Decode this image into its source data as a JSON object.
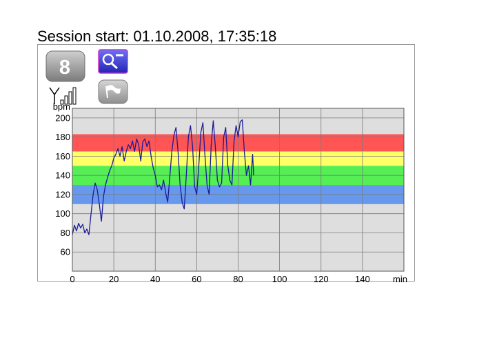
{
  "header": {
    "session_label": "Session start: 01.10.2008, 17:35:18"
  },
  "toolbar": {
    "buttons": [
      {
        "name": "badge-8-button",
        "icon": "number-badge-icon",
        "text": "8"
      },
      {
        "name": "zoom-out-button",
        "icon": "zoom-out-magnifier-icon"
      },
      {
        "name": "signal-strength",
        "icon": "signal-strength-icon"
      },
      {
        "name": "flag-button",
        "icon": "flag-icon"
      }
    ]
  },
  "chart_data": {
    "type": "line",
    "ylabel": "bpm",
    "xlabel": "min",
    "xlim": [
      0,
      160
    ],
    "ylim": [
      40,
      210
    ],
    "x_ticks": [
      0,
      20,
      40,
      60,
      80,
      100,
      120,
      140
    ],
    "x_tick_labels": [
      "0",
      "20",
      "40",
      "60",
      "80",
      "100",
      "120",
      "140"
    ],
    "y_ticks": [
      60,
      80,
      100,
      120,
      140,
      160,
      180,
      200
    ],
    "y_tick_labels": [
      "60",
      "80",
      "100",
      "120",
      "140",
      "160",
      "180",
      "200"
    ],
    "grid": true,
    "zones": [
      {
        "from": 110,
        "to": 130,
        "color": "#6699ee"
      },
      {
        "from": 130,
        "to": 150,
        "color": "#55ee55"
      },
      {
        "from": 150,
        "to": 165,
        "color": "#ffff66"
      },
      {
        "from": 165,
        "to": 183,
        "color": "#ff5555"
      }
    ],
    "series": [
      {
        "color": "#1a1a99",
        "points": [
          [
            0,
            78
          ],
          [
            1,
            88
          ],
          [
            2,
            82
          ],
          [
            3,
            90
          ],
          [
            4,
            85
          ],
          [
            5,
            89
          ],
          [
            6,
            80
          ],
          [
            7,
            84
          ],
          [
            8,
            78
          ],
          [
            9,
            100
          ],
          [
            10,
            120
          ],
          [
            11,
            132
          ],
          [
            12,
            125
          ],
          [
            13,
            110
          ],
          [
            14,
            92
          ],
          [
            15,
            118
          ],
          [
            16,
            130
          ],
          [
            17,
            138
          ],
          [
            18,
            145
          ],
          [
            19,
            150
          ],
          [
            20,
            158
          ],
          [
            21,
            162
          ],
          [
            22,
            168
          ],
          [
            23,
            160
          ],
          [
            24,
            170
          ],
          [
            25,
            155
          ],
          [
            26,
            165
          ],
          [
            27,
            172
          ],
          [
            28,
            168
          ],
          [
            29,
            176
          ],
          [
            30,
            165
          ],
          [
            31,
            178
          ],
          [
            32,
            172
          ],
          [
            33,
            155
          ],
          [
            34,
            175
          ],
          [
            35,
            178
          ],
          [
            36,
            170
          ],
          [
            37,
            176
          ],
          [
            38,
            160
          ],
          [
            39,
            148
          ],
          [
            40,
            140
          ],
          [
            41,
            128
          ],
          [
            42,
            130
          ],
          [
            43,
            125
          ],
          [
            44,
            135
          ],
          [
            45,
            122
          ],
          [
            46,
            112
          ],
          [
            47,
            138
          ],
          [
            48,
            165
          ],
          [
            49,
            182
          ],
          [
            50,
            190
          ],
          [
            51,
            165
          ],
          [
            52,
            130
          ],
          [
            53,
            112
          ],
          [
            54,
            105
          ],
          [
            55,
            140
          ],
          [
            56,
            180
          ],
          [
            57,
            192
          ],
          [
            58,
            170
          ],
          [
            59,
            128
          ],
          [
            60,
            120
          ],
          [
            61,
            150
          ],
          [
            62,
            185
          ],
          [
            63,
            195
          ],
          [
            64,
            160
          ],
          [
            65,
            130
          ],
          [
            66,
            120
          ],
          [
            67,
            172
          ],
          [
            68,
            197
          ],
          [
            69,
            170
          ],
          [
            70,
            135
          ],
          [
            71,
            128
          ],
          [
            72,
            132
          ],
          [
            73,
            180
          ],
          [
            74,
            190
          ],
          [
            75,
            150
          ],
          [
            76,
            135
          ],
          [
            77,
            130
          ],
          [
            78,
            175
          ],
          [
            79,
            192
          ],
          [
            80,
            180
          ],
          [
            81,
            196
          ],
          [
            82,
            198
          ],
          [
            83,
            165
          ],
          [
            84,
            140
          ],
          [
            85,
            150
          ],
          [
            86,
            130
          ],
          [
            87,
            162
          ],
          [
            87.5,
            140
          ]
        ]
      }
    ]
  }
}
